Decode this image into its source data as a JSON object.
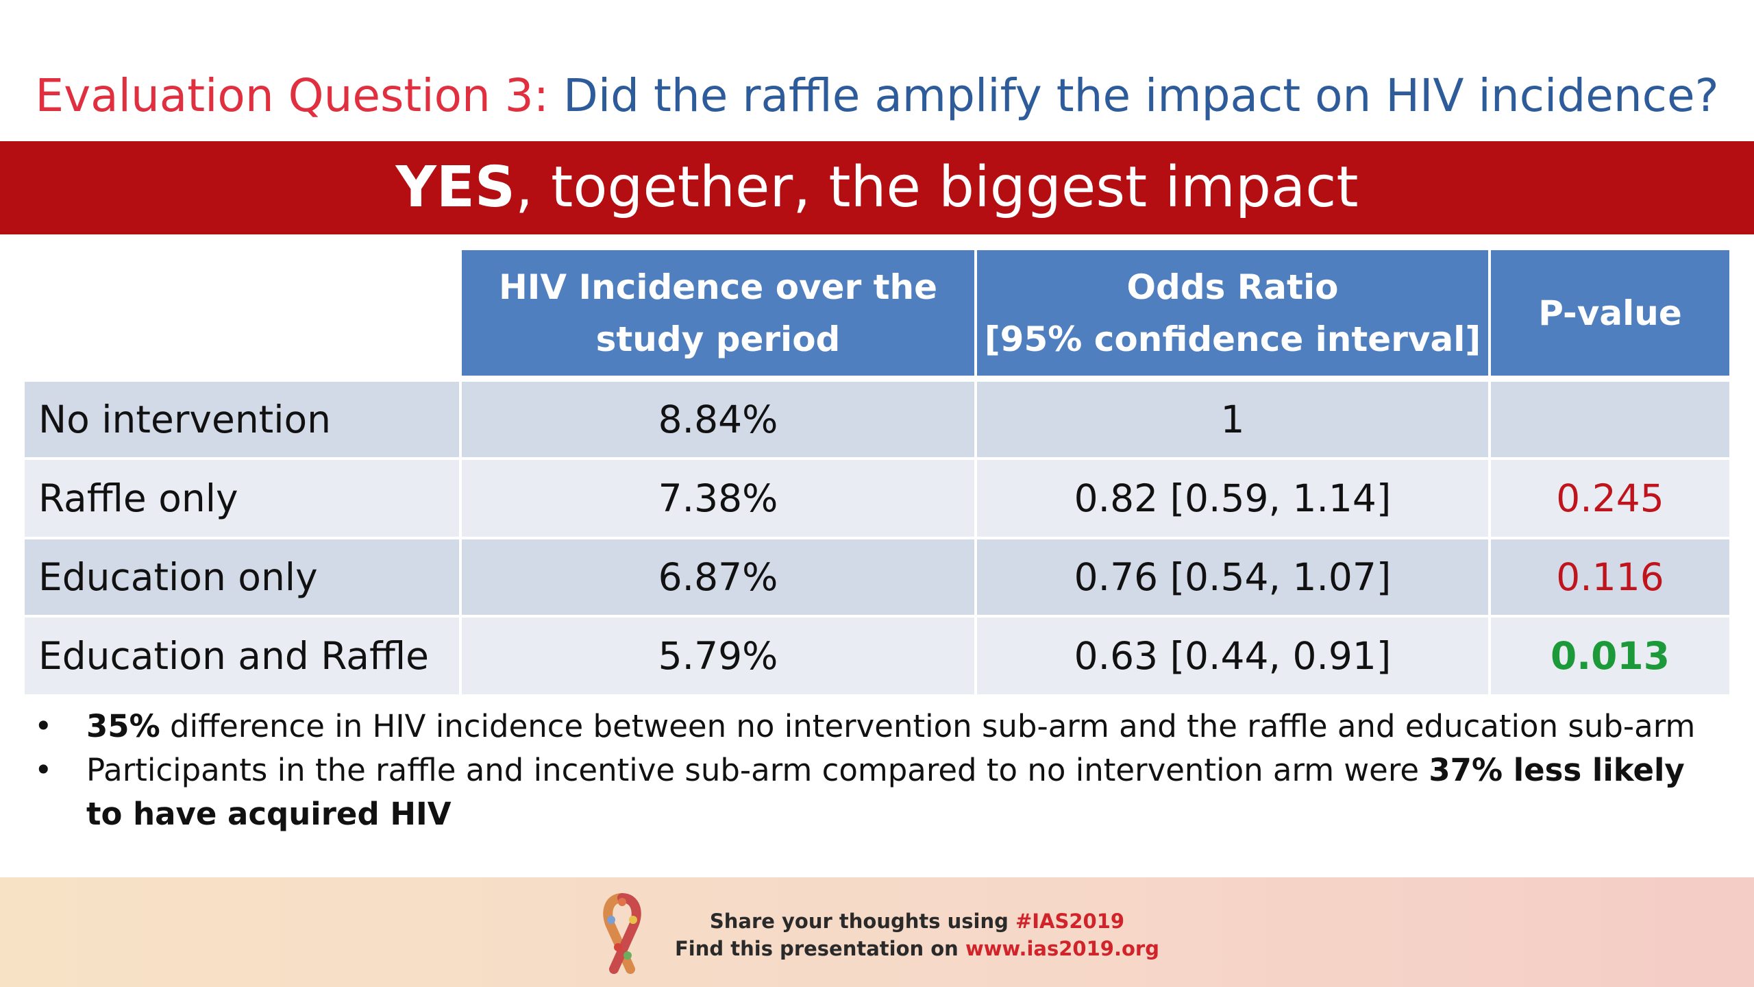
{
  "title": {
    "question_label": "Evaluation Question 3:",
    "question_text": "Did the raffle amplify the impact on HIV incidence?"
  },
  "banner": {
    "bold": "YES",
    "rest": ", together, the biggest impact"
  },
  "table": {
    "headers": [
      {
        "line1": "HIV Incidence over the",
        "line2": "study period"
      },
      {
        "line1": "Odds Ratio",
        "line2": "[95% confidence interval]"
      },
      {
        "line1": "P-value",
        "line2": ""
      }
    ],
    "rows": [
      {
        "label": "No intervention",
        "incidence": "8.84%",
        "odds_ratio": "1",
        "p_value": ""
      },
      {
        "label": "Raffle only",
        "incidence": "7.38%",
        "odds_ratio": "0.82 [0.59, 1.14]",
        "p_value": "0.245"
      },
      {
        "label": "Education only",
        "incidence": "6.87%",
        "odds_ratio": "0.76 [0.54, 1.07]",
        "p_value": "0.116"
      },
      {
        "label": "Education and Raffle",
        "incidence": "5.79%",
        "odds_ratio": "0.63 [0.44, 0.91]",
        "p_value": "0.013"
      }
    ]
  },
  "bullets": [
    {
      "bold": "35%",
      "text": " difference in HIV incidence between no intervention sub-arm and the raffle and education sub-arm",
      "bold_end": ""
    },
    {
      "bold": "",
      "text": "Participants in the raffle and incentive sub-arm compared to no intervention arm were ",
      "bold_end": "37% less likely to have acquired HIV"
    }
  ],
  "footer": {
    "line1_prefix": "Share your thoughts using ",
    "line1_hashtag": "#IAS2019",
    "line2_prefix": "Find this presentation on ",
    "line2_url": "www.ias2019.org"
  },
  "colors": {
    "title_label": "#e03040",
    "title_text": "#2e5c9a",
    "banner": "#b40d12",
    "header": "#4f7fbf",
    "pvalue_nonsig": "#c0141c",
    "pvalue_sig": "#1c9a3a"
  }
}
